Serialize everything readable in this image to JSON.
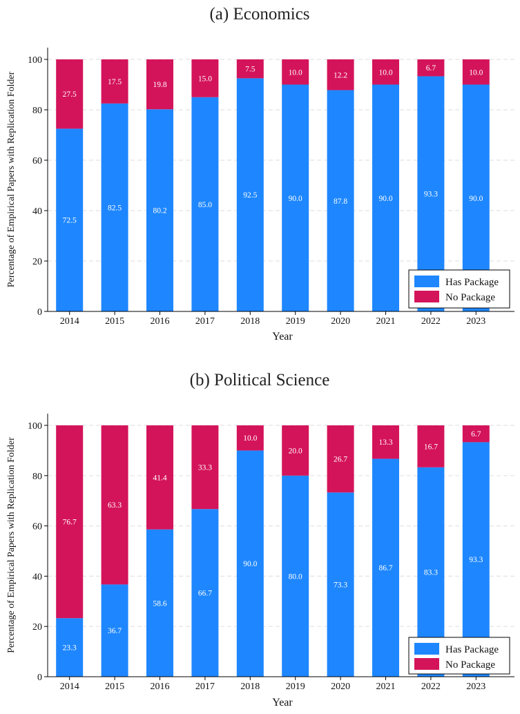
{
  "chart_data": [
    {
      "type": "bar",
      "stacked": true,
      "title": "(a) Economics",
      "xlabel": "Year",
      "ylabel": "Percentage of Empirical Papers with Replication Folder",
      "ylim": [
        0,
        100
      ],
      "yticks": [
        0,
        20,
        40,
        60,
        80,
        100
      ],
      "grid": "horizontal dashed",
      "legend_position": "bottom-right",
      "categories": [
        "2014",
        "2015",
        "2016",
        "2017",
        "2018",
        "2019",
        "2020",
        "2021",
        "2022",
        "2023"
      ],
      "series": [
        {
          "name": "Has Package",
          "color": "#1E87FF",
          "values": [
            72.5,
            82.5,
            80.2,
            85.0,
            92.5,
            90.0,
            87.8,
            90.0,
            93.3,
            90.0
          ],
          "labels": [
            "72.5",
            "82.5",
            "80.2",
            "85.0",
            "92.5",
            "90.0",
            "87.8",
            "90.0",
            "93.3",
            "90.0"
          ]
        },
        {
          "name": "No Package",
          "color": "#D4145A",
          "values": [
            27.5,
            17.5,
            19.8,
            15.0,
            7.5,
            10.0,
            12.2,
            10.0,
            6.7,
            10.0
          ],
          "labels": [
            "27.5",
            "17.5",
            "19.8",
            "15.0",
            "7.5",
            "10.0",
            "12.2",
            "10.0",
            "6.7",
            "10.0"
          ]
        }
      ]
    },
    {
      "type": "bar",
      "stacked": true,
      "title": "(b) Political Science",
      "xlabel": "Year",
      "ylabel": "Percentage of Empirical Papers with Replication Folder",
      "ylim": [
        0,
        100
      ],
      "yticks": [
        0,
        20,
        40,
        60,
        80,
        100
      ],
      "grid": "horizontal dashed",
      "legend_position": "bottom-right",
      "categories": [
        "2014",
        "2015",
        "2016",
        "2017",
        "2018",
        "2019",
        "2020",
        "2021",
        "2022",
        "2023"
      ],
      "series": [
        {
          "name": "Has Package",
          "color": "#1E87FF",
          "values": [
            23.3,
            36.7,
            58.6,
            66.7,
            90.0,
            80.0,
            73.3,
            86.7,
            83.3,
            93.3
          ],
          "labels": [
            "23.3",
            "36.7",
            "58.6",
            "66.7",
            "90.0",
            "80.0",
            "73.3",
            "86.7",
            "83.3",
            "93.3"
          ]
        },
        {
          "name": "No Package",
          "color": "#D4145A",
          "values": [
            76.7,
            63.3,
            41.4,
            33.3,
            10.0,
            20.0,
            26.7,
            13.3,
            16.7,
            6.7
          ],
          "labels": [
            "76.7",
            "63.3",
            "41.4",
            "33.3",
            "10.0",
            "20.0",
            "26.7",
            "13.3",
            "16.7",
            "6.7"
          ]
        }
      ]
    }
  ]
}
